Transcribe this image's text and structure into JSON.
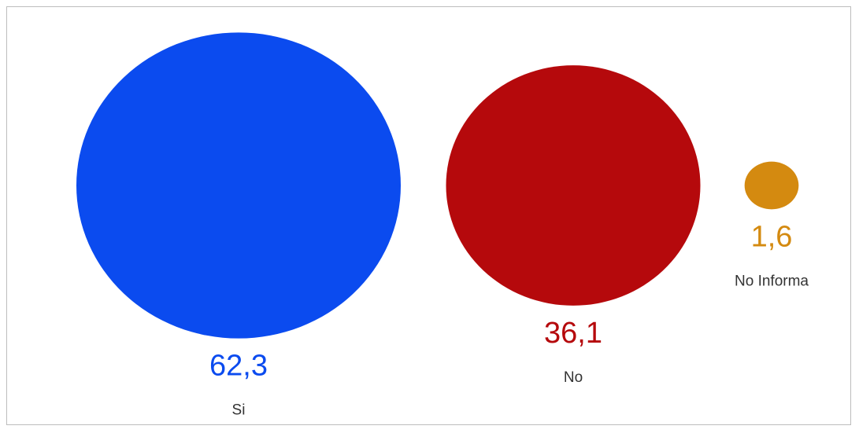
{
  "chart_data": {
    "type": "bubble",
    "title": "",
    "categories": [
      "Si",
      "No",
      "No Informa"
    ],
    "values": [
      62.3,
      36.1,
      1.6
    ],
    "value_labels": [
      "62,3",
      "36,1",
      "1,6"
    ],
    "colors": [
      "#0b4bef",
      "#b5090c",
      "#d48a10"
    ],
    "legend": "none",
    "grid": false
  }
}
